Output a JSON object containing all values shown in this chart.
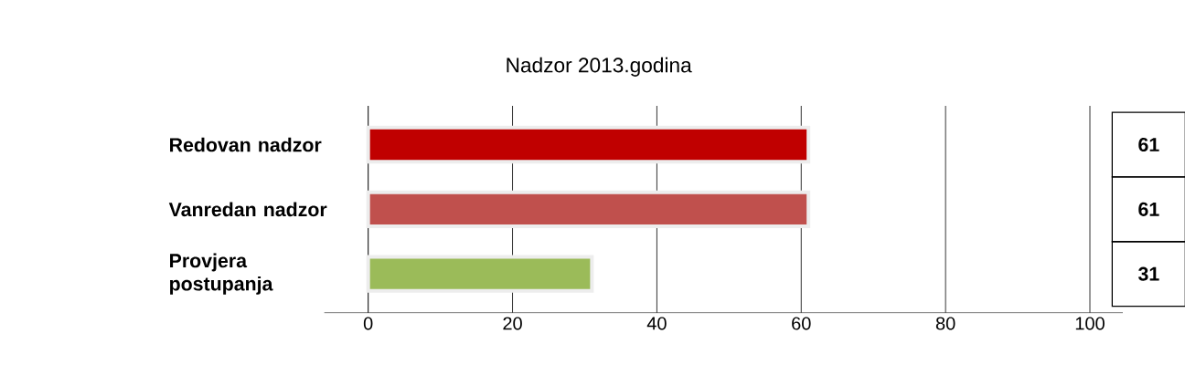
{
  "chart_data": {
    "type": "bar",
    "orientation": "horizontal",
    "title": "Nadzor 2013.godina",
    "categories": [
      "Redovan nadzor",
      "Vanredan nadzor",
      "Provjera postupanja"
    ],
    "values": [
      61,
      61,
      31
    ],
    "colors": [
      "#c00000",
      "#c0504d",
      "#9bbb59"
    ],
    "xlim": [
      0,
      100
    ],
    "xticks": [
      0,
      20,
      40,
      60,
      80,
      100
    ],
    "grid": "x",
    "data_labels": true
  }
}
